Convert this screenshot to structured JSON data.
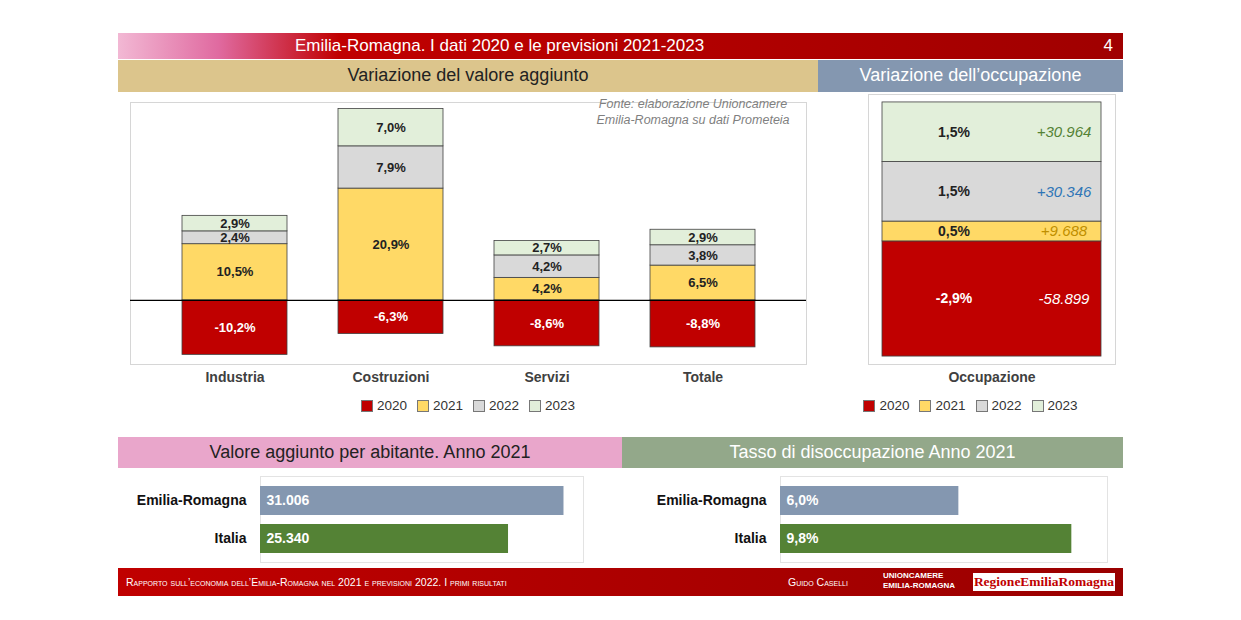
{
  "header": {
    "title": "Emilia-Romagna. I dati 2020 e le previsioni 2021-2023",
    "page": 4
  },
  "footer": {
    "text": "Rapporto sull’economia dell’Emilia-Romagna nel 2021 e previsioni 2022. I primi risultati",
    "author": "Guido Caselli",
    "logos": [
      "UNIONCAMERE",
      "EMILIA-ROMAGNA",
      "RegioneEmiliaRomagna"
    ]
  },
  "chart_data": [
    {
      "type": "bar",
      "title": "Variazione del valore aggiunto",
      "annotation": "Fonte: elaborazione Unioncamere Emilia-Romagna su dati Prometeia",
      "categories": [
        "Industria",
        "Costruzioni",
        "Servizi",
        "Totale"
      ],
      "stacked": true,
      "data_labels": true,
      "series": [
        {
          "name": "2020",
          "color": "#c00000",
          "values": [
            -10.2,
            -6.3,
            -8.6,
            -8.8
          ],
          "value_labels": [
            "-10,2%",
            "-6,3%",
            "-8,6%",
            "-8,8%"
          ]
        },
        {
          "name": "2021",
          "color": "#ffd966",
          "values": [
            10.5,
            20.9,
            4.2,
            6.5
          ],
          "value_labels": [
            "10,5%",
            "20,9%",
            "4,2%",
            "6,5%"
          ]
        },
        {
          "name": "2022",
          "color": "#d9d9d9",
          "values": [
            2.4,
            7.9,
            4.2,
            3.8
          ],
          "value_labels": [
            "2,4%",
            "7,9%",
            "4,2%",
            "3,8%"
          ]
        },
        {
          "name": "2023",
          "color": "#e2efda",
          "values": [
            2.9,
            7.0,
            2.7,
            2.9
          ],
          "value_labels": [
            "2,9%",
            "7,0%",
            "2,7%",
            "2,9%"
          ]
        }
      ],
      "ylim": [
        -12,
        37
      ],
      "yticks": [
        0
      ],
      "grid": true,
      "tick_labels": "x",
      "legend": "bottom"
    },
    {
      "type": "bar",
      "title": "Variazione dell’occupazione",
      "categories": [
        "Occupazione"
      ],
      "stacked": true,
      "data_labels": true,
      "series": [
        {
          "name": "2020",
          "color": "#c00000",
          "values": [
            -2.9
          ],
          "value_labels": [
            "-2,9%"
          ],
          "employment_change": [
            -58899
          ],
          "employment_change_labels": [
            "-58.899"
          ]
        },
        {
          "name": "2021",
          "color": "#ffd966",
          "values": [
            0.5
          ],
          "value_labels": [
            "0,5%"
          ],
          "employment_change": [
            9688
          ],
          "employment_change_labels": [
            "+9.688"
          ]
        },
        {
          "name": "2022",
          "color": "#d9d9d9",
          "values": [
            1.5
          ],
          "value_labels": [
            "1,5%"
          ],
          "employment_change": [
            30346
          ],
          "employment_change_labels": [
            "+30.346"
          ]
        },
        {
          "name": "2023",
          "color": "#e2efda",
          "values": [
            1.5
          ],
          "value_labels": [
            "1,5%"
          ],
          "employment_change": [
            30964
          ],
          "employment_change_labels": [
            "+30.964"
          ]
        }
      ],
      "ylim": [
        -3.1,
        3.7
      ],
      "yticks": [],
      "grid": false,
      "tick_labels": "x",
      "legend": "bottom"
    },
    {
      "type": "bar",
      "orientation": "horizontal",
      "title": "Valore aggiunto per abitante. Anno 2021",
      "categories": [
        "Emilia-Romagna",
        "Italia"
      ],
      "values": [
        31006,
        25340
      ],
      "value_labels": [
        "31.006",
        "25.340"
      ],
      "colors": [
        "#8497b0",
        "#548235"
      ],
      "xlim": [
        0,
        33000
      ],
      "xticks": [],
      "grid": false,
      "data_labels": true,
      "tick_labels": "y"
    },
    {
      "type": "bar",
      "orientation": "horizontal",
      "title": "Tasso di disoccupazione Anno 2021",
      "categories": [
        "Emilia-Romagna",
        "Italia"
      ],
      "values": [
        6.0,
        9.8
      ],
      "value_labels": [
        "6,0%",
        "9,8%"
      ],
      "colors": [
        "#8497b0",
        "#548235"
      ],
      "xlim": [
        0,
        11
      ],
      "xticks": [],
      "grid": false,
      "data_labels": true,
      "tick_labels": "y"
    }
  ]
}
